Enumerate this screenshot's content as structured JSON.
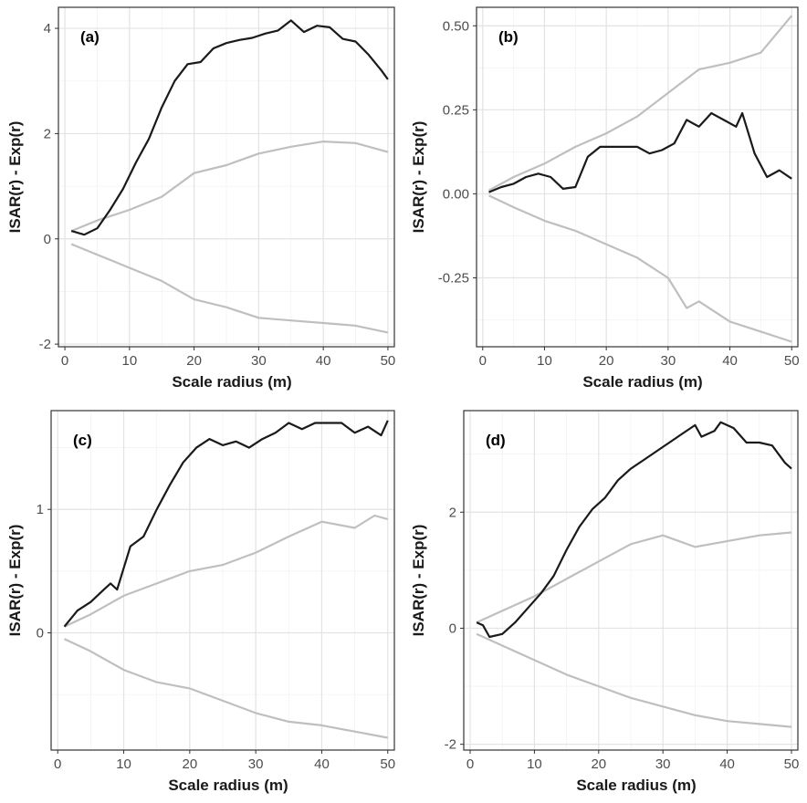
{
  "chart_data": [
    {
      "type": "line",
      "panel_label": "(a)",
      "xlabel": "Scale radius (m)",
      "ylabel": "ISAR(r) - Exp(r)",
      "xlim": [
        -1,
        51
      ],
      "ylim": [
        -2.05,
        4.4
      ],
      "x_ticks": [
        0,
        10,
        20,
        30,
        40,
        50
      ],
      "x_tick_labels": [
        "0",
        "10",
        "20",
        "30",
        "40",
        "50"
      ],
      "y_ticks": [
        -2,
        0,
        2,
        4
      ],
      "y_tick_labels": [
        "-2",
        "0",
        "2",
        "4"
      ],
      "y_minor": [
        -1,
        1,
        3
      ],
      "grid": true,
      "series": [
        {
          "role": "observed",
          "color": "#1a1a1a",
          "points": [
            [
              1,
              0.15
            ],
            [
              3,
              0.08
            ],
            [
              5,
              0.2
            ],
            [
              7,
              0.55
            ],
            [
              9,
              0.95
            ],
            [
              11,
              1.45
            ],
            [
              13,
              1.9
            ],
            [
              15,
              2.5
            ],
            [
              17,
              3.0
            ],
            [
              19,
              3.32
            ],
            [
              21,
              3.36
            ],
            [
              23,
              3.62
            ],
            [
              25,
              3.72
            ],
            [
              27,
              3.78
            ],
            [
              29,
              3.82
            ],
            [
              31,
              3.9
            ],
            [
              33,
              3.96
            ],
            [
              35,
              4.15
            ],
            [
              37,
              3.93
            ],
            [
              39,
              4.05
            ],
            [
              41,
              4.02
            ],
            [
              43,
              3.8
            ],
            [
              45,
              3.75
            ],
            [
              47,
              3.5
            ],
            [
              49,
              3.2
            ],
            [
              50,
              3.03
            ]
          ]
        },
        {
          "role": "upper-envelope",
          "color": "#bfbfbf",
          "points": [
            [
              1,
              0.15
            ],
            [
              5,
              0.35
            ],
            [
              10,
              0.55
            ],
            [
              15,
              0.8
            ],
            [
              20,
              1.25
            ],
            [
              25,
              1.4
            ],
            [
              30,
              1.62
            ],
            [
              35,
              1.75
            ],
            [
              40,
              1.85
            ],
            [
              45,
              1.82
            ],
            [
              50,
              1.65
            ]
          ]
        },
        {
          "role": "lower-envelope",
          "color": "#bfbfbf",
          "points": [
            [
              1,
              -0.1
            ],
            [
              5,
              -0.3
            ],
            [
              10,
              -0.55
            ],
            [
              15,
              -0.8
            ],
            [
              20,
              -1.15
            ],
            [
              25,
              -1.3
            ],
            [
              30,
              -1.5
            ],
            [
              35,
              -1.55
            ],
            [
              40,
              -1.6
            ],
            [
              45,
              -1.65
            ],
            [
              50,
              -1.78
            ]
          ]
        }
      ]
    },
    {
      "type": "line",
      "panel_label": "(b)",
      "xlabel": "Scale radius (m)",
      "ylabel": "ISAR(r) - Exp(r)",
      "xlim": [
        -1,
        51
      ],
      "ylim": [
        -0.455,
        0.555
      ],
      "x_ticks": [
        0,
        10,
        20,
        30,
        40,
        50
      ],
      "x_tick_labels": [
        "0",
        "10",
        "20",
        "30",
        "40",
        "50"
      ],
      "y_ticks": [
        -0.25,
        0,
        0.25,
        0.5
      ],
      "y_tick_labels": [
        "-0.25",
        "0.00",
        "0.25",
        "0.50"
      ],
      "y_minor": [
        -0.375,
        -0.125,
        0.125,
        0.375
      ],
      "grid": true,
      "series": [
        {
          "role": "observed",
          "color": "#1a1a1a",
          "points": [
            [
              1,
              0.005
            ],
            [
              3,
              0.02
            ],
            [
              5,
              0.03
            ],
            [
              7,
              0.05
            ],
            [
              9,
              0.06
            ],
            [
              11,
              0.05
            ],
            [
              13,
              0.015
            ],
            [
              15,
              0.02
            ],
            [
              17,
              0.11
            ],
            [
              19,
              0.14
            ],
            [
              21,
              0.14
            ],
            [
              23,
              0.14
            ],
            [
              25,
              0.14
            ],
            [
              27,
              0.12
            ],
            [
              29,
              0.13
            ],
            [
              31,
              0.15
            ],
            [
              33,
              0.22
            ],
            [
              35,
              0.2
            ],
            [
              37,
              0.24
            ],
            [
              39,
              0.22
            ],
            [
              41,
              0.2
            ],
            [
              42,
              0.24
            ],
            [
              44,
              0.12
            ],
            [
              46,
              0.05
            ],
            [
              48,
              0.07
            ],
            [
              50,
              0.045
            ]
          ]
        },
        {
          "role": "upper-envelope",
          "color": "#bfbfbf",
          "points": [
            [
              1,
              0.01
            ],
            [
              5,
              0.05
            ],
            [
              10,
              0.09
            ],
            [
              15,
              0.14
            ],
            [
              20,
              0.18
            ],
            [
              25,
              0.23
            ],
            [
              30,
              0.3
            ],
            [
              35,
              0.37
            ],
            [
              40,
              0.39
            ],
            [
              45,
              0.42
            ],
            [
              50,
              0.53
            ]
          ]
        },
        {
          "role": "lower-envelope",
          "color": "#bfbfbf",
          "points": [
            [
              1,
              -0.005
            ],
            [
              5,
              -0.04
            ],
            [
              10,
              -0.08
            ],
            [
              15,
              -0.11
            ],
            [
              20,
              -0.15
            ],
            [
              25,
              -0.19
            ],
            [
              30,
              -0.25
            ],
            [
              33,
              -0.34
            ],
            [
              35,
              -0.32
            ],
            [
              40,
              -0.38
            ],
            [
              45,
              -0.41
            ],
            [
              50,
              -0.44
            ]
          ]
        }
      ]
    },
    {
      "type": "line",
      "panel_label": "(c)",
      "xlabel": "Scale radius (m)",
      "ylabel": "ISAR(r) - Exp(r)",
      "xlim": [
        -1,
        51
      ],
      "ylim": [
        -0.95,
        1.8
      ],
      "x_ticks": [
        0,
        10,
        20,
        30,
        40,
        50
      ],
      "x_tick_labels": [
        "0",
        "10",
        "20",
        "30",
        "40",
        "50"
      ],
      "y_ticks": [
        0,
        1
      ],
      "y_tick_labels": [
        "0",
        "1"
      ],
      "y_minor": [
        -0.5,
        0.5,
        1.5
      ],
      "grid": true,
      "series": [
        {
          "role": "observed",
          "color": "#1a1a1a",
          "points": [
            [
              1,
              0.05
            ],
            [
              3,
              0.18
            ],
            [
              5,
              0.25
            ],
            [
              7,
              0.35
            ],
            [
              8,
              0.4
            ],
            [
              9,
              0.35
            ],
            [
              11,
              0.7
            ],
            [
              13,
              0.78
            ],
            [
              15,
              1.0
            ],
            [
              17,
              1.2
            ],
            [
              19,
              1.38
            ],
            [
              21,
              1.5
            ],
            [
              23,
              1.57
            ],
            [
              25,
              1.52
            ],
            [
              27,
              1.55
            ],
            [
              29,
              1.5
            ],
            [
              31,
              1.57
            ],
            [
              33,
              1.62
            ],
            [
              35,
              1.7
            ],
            [
              37,
              1.65
            ],
            [
              39,
              1.7
            ],
            [
              41,
              1.7
            ],
            [
              43,
              1.7
            ],
            [
              45,
              1.62
            ],
            [
              47,
              1.67
            ],
            [
              49,
              1.6
            ],
            [
              50,
              1.72
            ]
          ]
        },
        {
          "role": "upper-envelope",
          "color": "#bfbfbf",
          "points": [
            [
              1,
              0.05
            ],
            [
              5,
              0.15
            ],
            [
              10,
              0.3
            ],
            [
              15,
              0.4
            ],
            [
              20,
              0.5
            ],
            [
              25,
              0.55
            ],
            [
              30,
              0.65
            ],
            [
              35,
              0.78
            ],
            [
              40,
              0.9
            ],
            [
              45,
              0.85
            ],
            [
              48,
              0.95
            ],
            [
              50,
              0.92
            ]
          ]
        },
        {
          "role": "lower-envelope",
          "color": "#bfbfbf",
          "points": [
            [
              1,
              -0.05
            ],
            [
              5,
              -0.15
            ],
            [
              10,
              -0.3
            ],
            [
              15,
              -0.4
            ],
            [
              20,
              -0.45
            ],
            [
              25,
              -0.55
            ],
            [
              30,
              -0.65
            ],
            [
              35,
              -0.72
            ],
            [
              40,
              -0.75
            ],
            [
              45,
              -0.8
            ],
            [
              50,
              -0.85
            ]
          ]
        }
      ]
    },
    {
      "type": "line",
      "panel_label": "(d)",
      "xlabel": "Scale radius (m)",
      "ylabel": "ISAR(r) - Exp(r)",
      "xlim": [
        -1,
        51
      ],
      "ylim": [
        -2.1,
        3.75
      ],
      "x_ticks": [
        0,
        10,
        20,
        30,
        40,
        50
      ],
      "x_tick_labels": [
        "0",
        "10",
        "20",
        "30",
        "40",
        "50"
      ],
      "y_ticks": [
        -2,
        0,
        2
      ],
      "y_tick_labels": [
        "-2",
        "0",
        "2"
      ],
      "y_minor": [
        -1,
        1,
        3
      ],
      "grid": true,
      "series": [
        {
          "role": "observed",
          "color": "#1a1a1a",
          "points": [
            [
              1,
              0.1
            ],
            [
              2,
              0.05
            ],
            [
              3,
              -0.15
            ],
            [
              5,
              -0.1
            ],
            [
              7,
              0.1
            ],
            [
              9,
              0.35
            ],
            [
              11,
              0.6
            ],
            [
              13,
              0.9
            ],
            [
              15,
              1.35
            ],
            [
              17,
              1.75
            ],
            [
              19,
              2.05
            ],
            [
              21,
              2.25
            ],
            [
              23,
              2.55
            ],
            [
              25,
              2.75
            ],
            [
              27,
              2.9
            ],
            [
              29,
              3.05
            ],
            [
              31,
              3.2
            ],
            [
              33,
              3.35
            ],
            [
              35,
              3.5
            ],
            [
              36,
              3.3
            ],
            [
              38,
              3.4
            ],
            [
              39,
              3.55
            ],
            [
              41,
              3.45
            ],
            [
              43,
              3.2
            ],
            [
              45,
              3.2
            ],
            [
              47,
              3.15
            ],
            [
              49,
              2.85
            ],
            [
              50,
              2.75
            ]
          ]
        },
        {
          "role": "upper-envelope",
          "color": "#bfbfbf",
          "points": [
            [
              1,
              0.1
            ],
            [
              5,
              0.3
            ],
            [
              10,
              0.55
            ],
            [
              15,
              0.85
            ],
            [
              20,
              1.15
            ],
            [
              25,
              1.45
            ],
            [
              30,
              1.6
            ],
            [
              35,
              1.4
            ],
            [
              40,
              1.5
            ],
            [
              45,
              1.6
            ],
            [
              50,
              1.65
            ]
          ]
        },
        {
          "role": "lower-envelope",
          "color": "#bfbfbf",
          "points": [
            [
              1,
              -0.1
            ],
            [
              5,
              -0.3
            ],
            [
              10,
              -0.55
            ],
            [
              15,
              -0.8
            ],
            [
              20,
              -1.0
            ],
            [
              25,
              -1.2
            ],
            [
              30,
              -1.35
            ],
            [
              35,
              -1.5
            ],
            [
              40,
              -1.6
            ],
            [
              45,
              -1.65
            ],
            [
              50,
              -1.7
            ]
          ]
        }
      ]
    }
  ]
}
